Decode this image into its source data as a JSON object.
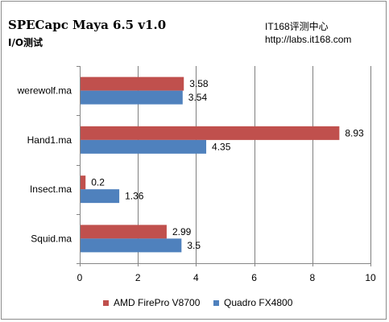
{
  "header": {
    "title": "SPECapc Maya 6.5 v1.0",
    "subtitle": "I/O测试",
    "site_name": "IT168评测中心",
    "site_url": "http://labs.it168.com"
  },
  "colors": {
    "amd": "#c0504d",
    "quadro": "#4f81bd",
    "grid": "#7f7f7f",
    "axis": "#868686"
  },
  "chart_data": {
    "type": "bar",
    "orientation": "horizontal",
    "categories": [
      "werewolf.ma",
      "Hand1.ma",
      "Insect.ma",
      "Squid.ma"
    ],
    "series": [
      {
        "name": "AMD FirePro V8700",
        "values": [
          3.58,
          8.93,
          0.2,
          2.99
        ]
      },
      {
        "name": "Quadro FX4800",
        "values": [
          3.54,
          4.35,
          1.36,
          3.5
        ]
      }
    ],
    "value_labels": [
      [
        "3.58",
        "8.93",
        "0.2",
        "2.99"
      ],
      [
        "3.54",
        "4.35",
        "1.36",
        "3.5"
      ]
    ],
    "xlim": [
      0,
      10
    ],
    "xticks": [
      0,
      2,
      4,
      6,
      8,
      10
    ],
    "xtick_labels": [
      "0",
      "2",
      "4",
      "6",
      "8",
      "10"
    ],
    "grid": true,
    "legend_position": "bottom"
  }
}
